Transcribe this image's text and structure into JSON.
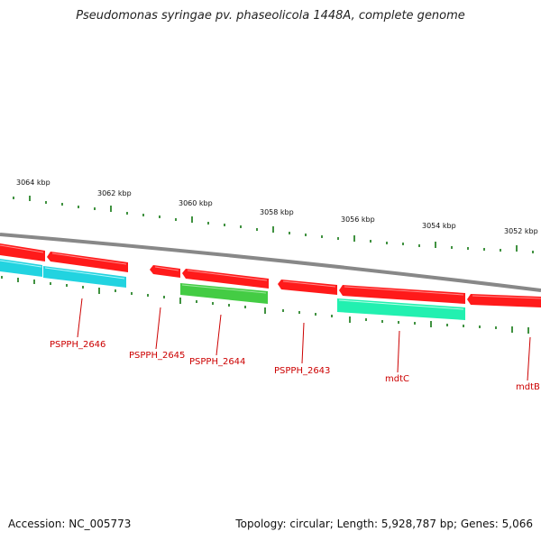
{
  "title": "Pseudomonas syringae pv. phaseolicola 1448A, complete genome",
  "footer": {
    "accession": "Accession: NC_005773",
    "summary": "Topology: circular; Length: 5,928,787 bp; Genes: 5,066"
  },
  "scale_labels": [
    "3064 kbp",
    "3062 kbp",
    "3060 kbp",
    "3058 kbp",
    "3056 kbp",
    "3054 kbp",
    "3052 kbp"
  ],
  "gene_labels": [
    "PSPPH_2646",
    "PSPPH_2645",
    "PSPPH_2644",
    "PSPPH_2643",
    "mdtC",
    "mdtB"
  ],
  "colors": {
    "backbone": "#888888",
    "cds": "#ff1a1a",
    "feature_cyan": "#22d3e0",
    "feature_green": "#44cc44",
    "feature_aqua": "#22f0b0",
    "tick": "#117711",
    "label": "#cc0000"
  }
}
